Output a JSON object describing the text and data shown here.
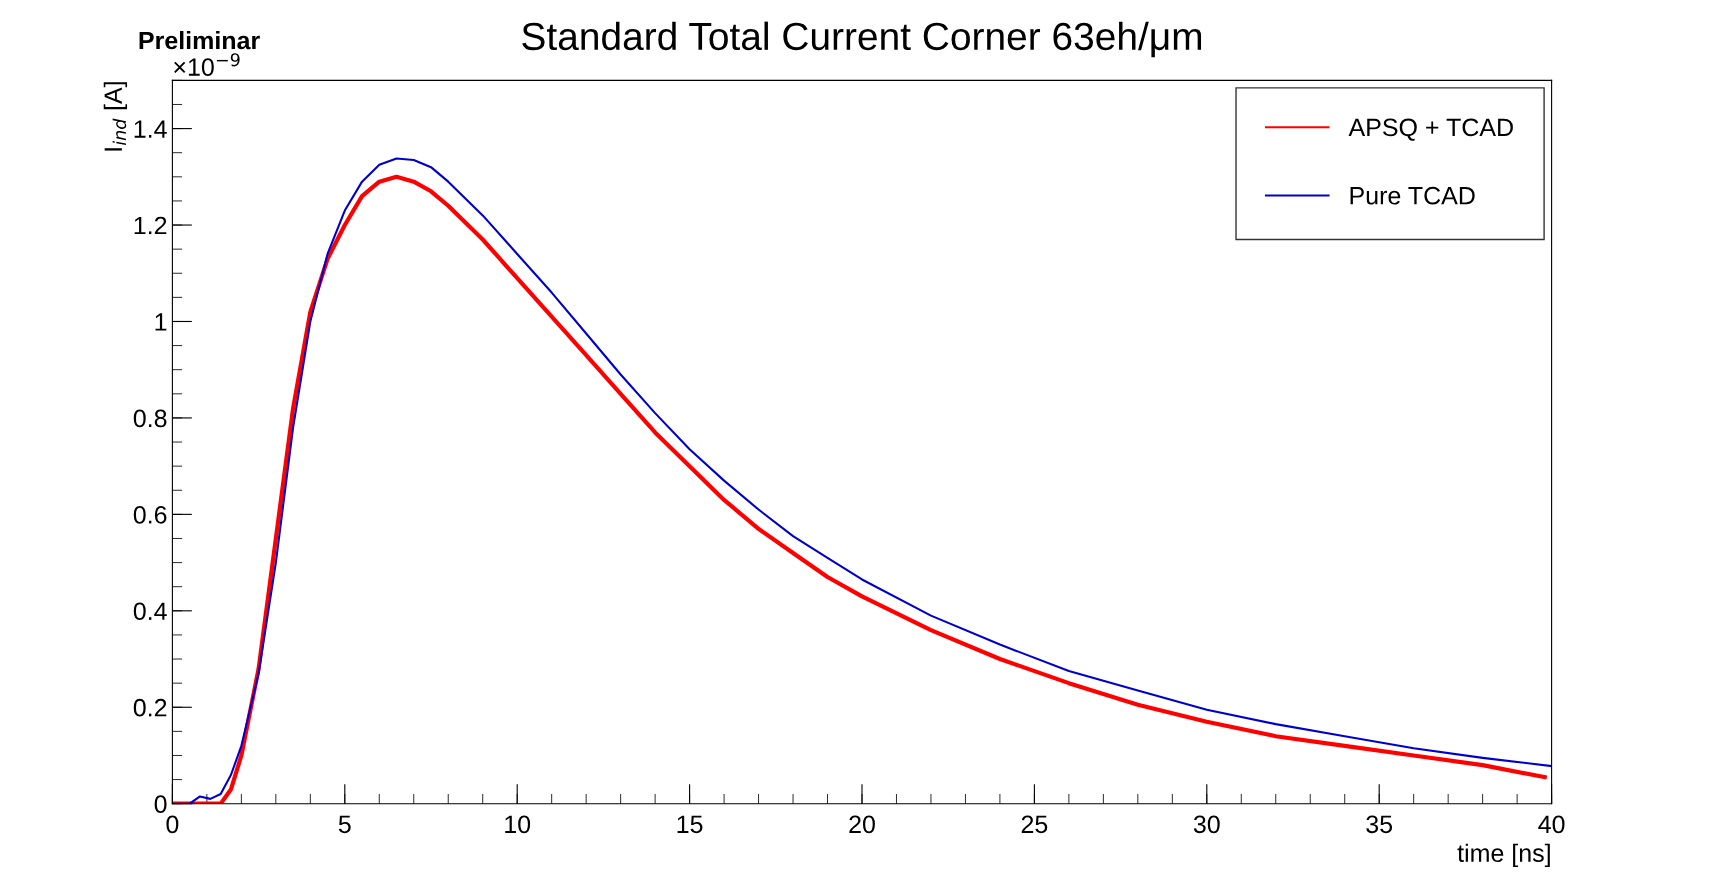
{
  "chart_data": {
    "type": "line",
    "title": "Standard Total Current Corner 63eh/μm",
    "xlabel": "time [ns]",
    "ylabel": "I$_{ind}$ [A]",
    "annotations": [
      "Preliminar",
      "×10$^{−9}$"
    ],
    "xlim": [
      0,
      40
    ],
    "xticks": [
      0,
      5,
      10,
      15,
      20,
      25,
      30,
      35,
      40
    ],
    "ylim": [
      0,
      1.5
    ],
    "yticks": [
      0,
      0.2,
      0.4,
      0.6,
      0.8,
      1,
      1.2,
      1.4
    ],
    "grid": false,
    "legend": "top right",
    "marker": "none",
    "line_style": "solid",
    "series": [
      {
        "name": "APSQ + TCAD",
        "color": "#ff0000",
        "x": [
          0,
          1.4,
          1.7,
          2.0,
          2.5,
          3.0,
          3.5,
          4.0,
          4.5,
          5,
          5.5,
          6,
          6.5,
          7,
          7.5,
          8,
          9,
          10,
          11,
          12,
          13,
          14,
          15,
          16,
          17,
          18,
          19,
          20,
          22,
          24,
          26,
          28,
          30,
          32,
          34,
          36,
          38,
          39.8
        ],
        "values": [
          0,
          0,
          0.03,
          0.1,
          0.28,
          0.55,
          0.82,
          1.02,
          1.13,
          1.2,
          1.26,
          1.29,
          1.3,
          1.29,
          1.27,
          1.24,
          1.17,
          1.09,
          1.01,
          0.93,
          0.85,
          0.77,
          0.7,
          0.63,
          0.57,
          0.52,
          0.47,
          0.43,
          0.36,
          0.3,
          0.25,
          0.205,
          0.17,
          0.14,
          0.12,
          0.1,
          0.08,
          0.055
        ]
      },
      {
        "name": "Pure TCAD",
        "color": "#0000cc",
        "x": [
          0,
          0.5,
          0.8,
          1.1,
          1.4,
          1.7,
          2.0,
          2.5,
          3.0,
          3.5,
          4.0,
          4.5,
          5.0,
          5.5,
          6.0,
          6.5,
          7.0,
          7.5,
          8,
          9,
          10,
          11,
          12,
          13,
          14,
          15,
          16,
          17,
          18,
          19,
          20,
          22,
          24,
          26,
          28,
          30,
          32,
          34,
          36,
          38,
          40
        ],
        "values": [
          0,
          0,
          0.015,
          0.01,
          0.02,
          0.06,
          0.12,
          0.27,
          0.5,
          0.78,
          1.0,
          1.14,
          1.23,
          1.29,
          1.325,
          1.338,
          1.335,
          1.32,
          1.29,
          1.22,
          1.14,
          1.06,
          0.975,
          0.89,
          0.81,
          0.735,
          0.67,
          0.61,
          0.555,
          0.51,
          0.465,
          0.39,
          0.33,
          0.275,
          0.235,
          0.195,
          0.165,
          0.14,
          0.115,
          0.095,
          0.078
        ]
      }
    ]
  }
}
